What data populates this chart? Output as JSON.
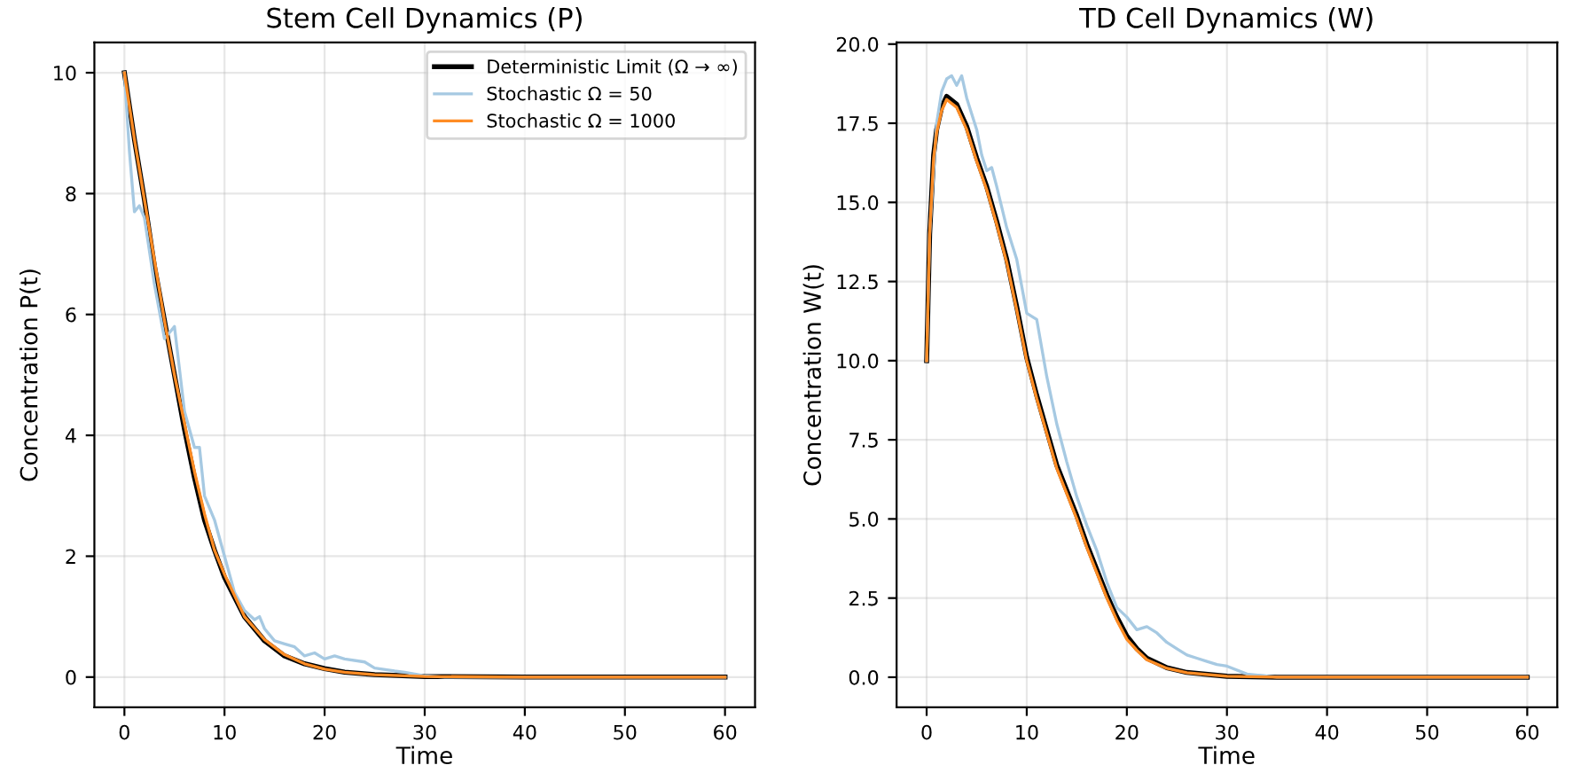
{
  "chart_data": [
    {
      "type": "line",
      "title": "Stem Cell Dynamics (P)",
      "xlabel": "Time",
      "ylabel": "Concentration P(t)",
      "xlim": [
        -3,
        63
      ],
      "ylim": [
        -0.5,
        10.5
      ],
      "xticks": [
        0,
        10,
        20,
        30,
        40,
        50,
        60
      ],
      "yticks": [
        0,
        2,
        4,
        6,
        8,
        10
      ],
      "grid": true,
      "legend": "top right",
      "series": [
        {
          "name": "Deterministic Limit (Ω → ∞)",
          "color": "#000000",
          "x": [
            0,
            1,
            2,
            3,
            4,
            5,
            6,
            7,
            8,
            9,
            10,
            12,
            14,
            16,
            18,
            20,
            22,
            25,
            30,
            40,
            60
          ],
          "values": [
            10,
            8.9,
            7.9,
            6.8,
            5.9,
            5.0,
            4.1,
            3.3,
            2.6,
            2.1,
            1.65,
            1.0,
            0.6,
            0.35,
            0.22,
            0.14,
            0.08,
            0.04,
            0.01,
            0,
            0
          ]
        },
        {
          "name": "Stochastic Ω = 50",
          "color": "#a6c9e2",
          "x": [
            0,
            0.5,
            1,
            1.5,
            2,
            3,
            4,
            4.5,
            5,
            5.5,
            6,
            7,
            7.5,
            8,
            9,
            10,
            11,
            12,
            13,
            13.5,
            14,
            15,
            16,
            17,
            18,
            19,
            20,
            21,
            22,
            24,
            25,
            27,
            28,
            30,
            32,
            60
          ],
          "values": [
            10,
            8.7,
            7.7,
            7.8,
            7.6,
            6.5,
            5.6,
            5.7,
            5.8,
            5.1,
            4.4,
            3.8,
            3.8,
            3.0,
            2.6,
            2.0,
            1.4,
            1.1,
            0.95,
            1.0,
            0.8,
            0.6,
            0.55,
            0.5,
            0.35,
            0.4,
            0.3,
            0.35,
            0.3,
            0.25,
            0.15,
            0.1,
            0.08,
            0.02,
            0,
            0
          ]
        },
        {
          "name": "Stochastic Ω = 1000",
          "color": "#ff8c24",
          "x": [
            0,
            1,
            2,
            3,
            4,
            5,
            6,
            7,
            8,
            9,
            10,
            12,
            14,
            16,
            18,
            20,
            22,
            25,
            30,
            40,
            60
          ],
          "values": [
            10,
            8.9,
            7.9,
            6.9,
            5.9,
            5.0,
            4.2,
            3.4,
            2.7,
            2.1,
            1.7,
            1.0,
            0.62,
            0.37,
            0.22,
            0.13,
            0.08,
            0.04,
            0.01,
            0,
            0
          ]
        }
      ]
    },
    {
      "type": "line",
      "title": "TD Cell Dynamics (W)",
      "xlabel": "Time",
      "ylabel": "Concentration W(t)",
      "xlim": [
        -3,
        63
      ],
      "ylim": [
        -0.95,
        20.05
      ],
      "xticks": [
        0,
        10,
        20,
        30,
        40,
        50,
        60
      ],
      "yticks": [
        {
          "value": 0,
          "label": "0.0"
        },
        {
          "value": 2.5,
          "label": "2.5"
        },
        {
          "value": 5,
          "label": "5.0"
        },
        {
          "value": 7.5,
          "label": "7.5"
        },
        {
          "value": 10,
          "label": "10.0"
        },
        {
          "value": 12.5,
          "label": "12.5"
        },
        {
          "value": 15,
          "label": "15.0"
        },
        {
          "value": 17.5,
          "label": "17.5"
        },
        {
          "value": 20,
          "label": "20.0"
        }
      ],
      "grid": true,
      "series": [
        {
          "color": "#000000",
          "x": [
            0,
            0.3,
            0.7,
            1,
            1.5,
            2,
            3,
            4,
            5,
            6,
            7,
            8,
            9,
            10,
            11,
            12,
            13,
            14,
            15,
            16,
            17,
            18,
            19,
            20,
            21,
            22,
            24,
            26,
            30,
            35,
            60
          ],
          "values": [
            10,
            14,
            16.5,
            17.3,
            18.0,
            18.35,
            18.1,
            17.4,
            16.4,
            15.5,
            14.4,
            13.2,
            11.7,
            10.1,
            8.9,
            7.8,
            6.7,
            5.9,
            5.1,
            4.2,
            3.4,
            2.6,
            1.9,
            1.3,
            0.9,
            0.6,
            0.3,
            0.15,
            0.03,
            0,
            0
          ]
        },
        {
          "color": "#a6c9e2",
          "x": [
            0,
            0.3,
            1,
            1.5,
            2,
            2.5,
            3,
            3.5,
            4,
            5,
            5.5,
            6,
            6.5,
            7,
            8,
            9,
            10,
            11,
            12,
            13,
            14,
            15,
            16,
            17,
            18,
            19,
            20,
            21,
            22,
            23,
            24,
            25,
            26,
            27,
            28,
            29,
            30,
            32,
            35,
            60
          ],
          "values": [
            10,
            14,
            17.5,
            18.5,
            18.9,
            19.0,
            18.7,
            19.0,
            18.3,
            17.3,
            16.5,
            16.0,
            16.1,
            15.5,
            14.2,
            13.2,
            11.5,
            11.3,
            9.5,
            8.0,
            6.8,
            5.7,
            4.8,
            4.0,
            3.0,
            2.2,
            1.9,
            1.5,
            1.6,
            1.4,
            1.1,
            0.9,
            0.7,
            0.6,
            0.5,
            0.4,
            0.35,
            0.1,
            0,
            0
          ]
        },
        {
          "color": "#ff8c24",
          "x": [
            0,
            0.3,
            0.7,
            1,
            1.5,
            2,
            3,
            4,
            5,
            6,
            7,
            8,
            9,
            10,
            11,
            12,
            13,
            14,
            15,
            16,
            17,
            18,
            19,
            20,
            21,
            22,
            24,
            26,
            30,
            35,
            60
          ],
          "values": [
            10,
            14,
            16.4,
            17.2,
            17.9,
            18.25,
            18.0,
            17.3,
            16.3,
            15.4,
            14.3,
            13.1,
            11.6,
            10.0,
            8.8,
            7.7,
            6.6,
            5.8,
            5.0,
            4.1,
            3.3,
            2.5,
            1.8,
            1.2,
            0.85,
            0.55,
            0.28,
            0.14,
            0.03,
            0,
            0
          ]
        }
      ]
    }
  ]
}
